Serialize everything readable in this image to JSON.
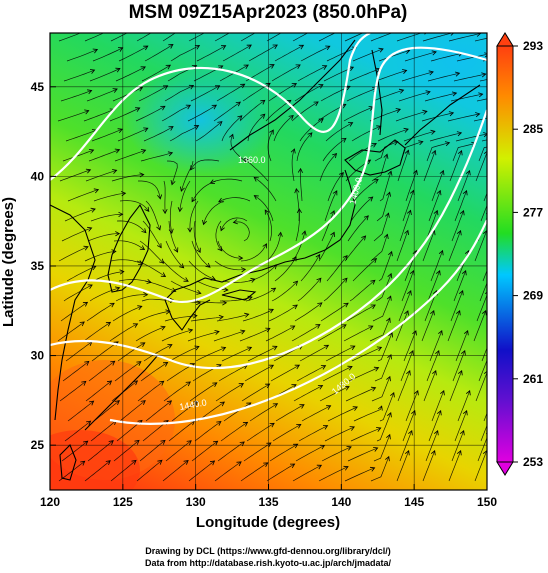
{
  "title": "MSM 09Z15Apr2023 (850.0hPa)",
  "x_axis": {
    "label": "Longitude (degrees)",
    "range": [
      120,
      150
    ],
    "ticks": [
      "120",
      "125",
      "130",
      "135",
      "140",
      "145",
      "150"
    ]
  },
  "y_axis": {
    "label": "Latitude  (degrees)",
    "range": [
      22.5,
      48
    ],
    "ticks": [
      "25",
      "30",
      "35",
      "40",
      "45"
    ]
  },
  "colorbar": {
    "range": [
      253,
      293
    ],
    "ticks": [
      "253",
      "261",
      "269",
      "277",
      "285",
      "293"
    ],
    "colors": [
      "#e000e0",
      "#1010c8",
      "#00c8ff",
      "#22dd22",
      "#d2f000",
      "#ff6000",
      "#ff4010"
    ]
  },
  "contour_labels": [
    "1360.0",
    "1400.0",
    "1440.0",
    "1480.0"
  ],
  "credits": [
    "Drawing by DCL (https://www.gfd-dennou.org/library/dcl/)",
    "Data from http://database.rish.kyoto-u.ac.jp/arch/jmadata/"
  ]
}
